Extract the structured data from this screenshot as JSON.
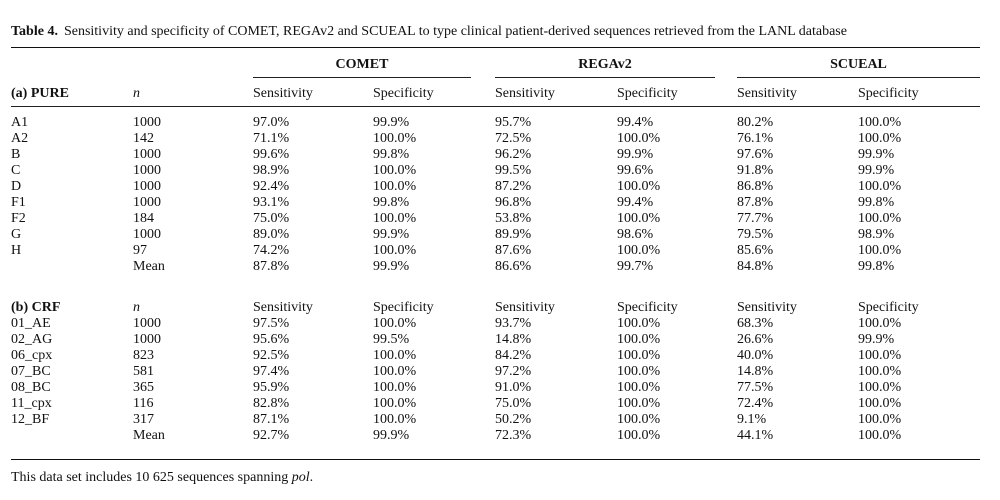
{
  "caption": {
    "number": "Table 4.",
    "text": "Sensitivity and specificity of COMET, REGAv2 and SCUEAL to type clinical patient-derived sequences retrieved from the LANL database"
  },
  "groups": [
    "COMET",
    "REGAv2",
    "SCUEAL"
  ],
  "headers": {
    "sensitivity": "Sensitivity",
    "specificity": "Specificity",
    "n": "n"
  },
  "sections": [
    {
      "title": "(a) PURE",
      "header_row": false,
      "rows": [
        [
          "A1",
          "1000",
          "97.0%",
          "99.9%",
          "95.7%",
          "99.4%",
          "80.2%",
          "100.0%"
        ],
        [
          "A2",
          "142",
          "71.1%",
          "100.0%",
          "72.5%",
          "100.0%",
          "76.1%",
          "100.0%"
        ],
        [
          "B",
          "1000",
          "99.6%",
          "99.8%",
          "96.2%",
          "99.9%",
          "97.6%",
          "99.9%"
        ],
        [
          "C",
          "1000",
          "98.9%",
          "100.0%",
          "99.5%",
          "99.6%",
          "91.8%",
          "99.9%"
        ],
        [
          "D",
          "1000",
          "92.4%",
          "100.0%",
          "87.2%",
          "100.0%",
          "86.8%",
          "100.0%"
        ],
        [
          "F1",
          "1000",
          "93.1%",
          "99.8%",
          "96.8%",
          "99.4%",
          "87.8%",
          "99.8%"
        ],
        [
          "F2",
          "184",
          "75.0%",
          "100.0%",
          "53.8%",
          "100.0%",
          "77.7%",
          "100.0%"
        ],
        [
          "G",
          "1000",
          "89.0%",
          "99.9%",
          "89.9%",
          "98.6%",
          "79.5%",
          "98.9%"
        ],
        [
          "H",
          "97",
          "74.2%",
          "100.0%",
          "87.6%",
          "100.0%",
          "85.6%",
          "100.0%"
        ],
        [
          "",
          "Mean",
          "87.8%",
          "99.9%",
          "86.6%",
          "99.7%",
          "84.8%",
          "99.8%"
        ]
      ]
    },
    {
      "title": "(b) CRF",
      "header_row": true,
      "rows": [
        [
          "01_AE",
          "1000",
          "97.5%",
          "100.0%",
          "93.7%",
          "100.0%",
          "68.3%",
          "100.0%"
        ],
        [
          "02_AG",
          "1000",
          "95.6%",
          "99.5%",
          "14.8%",
          "100.0%",
          "26.6%",
          "99.9%"
        ],
        [
          "06_cpx",
          "823",
          "92.5%",
          "100.0%",
          "84.2%",
          "100.0%",
          "40.0%",
          "100.0%"
        ],
        [
          "07_BC",
          "581",
          "97.4%",
          "100.0%",
          "97.2%",
          "100.0%",
          "14.8%",
          "100.0%"
        ],
        [
          "08_BC",
          "365",
          "95.9%",
          "100.0%",
          "91.0%",
          "100.0%",
          "77.5%",
          "100.0%"
        ],
        [
          "11_cpx",
          "116",
          "82.8%",
          "100.0%",
          "75.0%",
          "100.0%",
          "72.4%",
          "100.0%"
        ],
        [
          "12_BF",
          "317",
          "87.1%",
          "100.0%",
          "50.2%",
          "100.0%",
          "9.1%",
          "100.0%"
        ],
        [
          "",
          "Mean",
          "92.7%",
          "99.9%",
          "72.3%",
          "100.0%",
          "44.1%",
          "100.0%"
        ]
      ]
    }
  ],
  "footnote": {
    "text": "This data set includes 10 625 sequences spanning ",
    "italic": "pol",
    "end": "."
  }
}
